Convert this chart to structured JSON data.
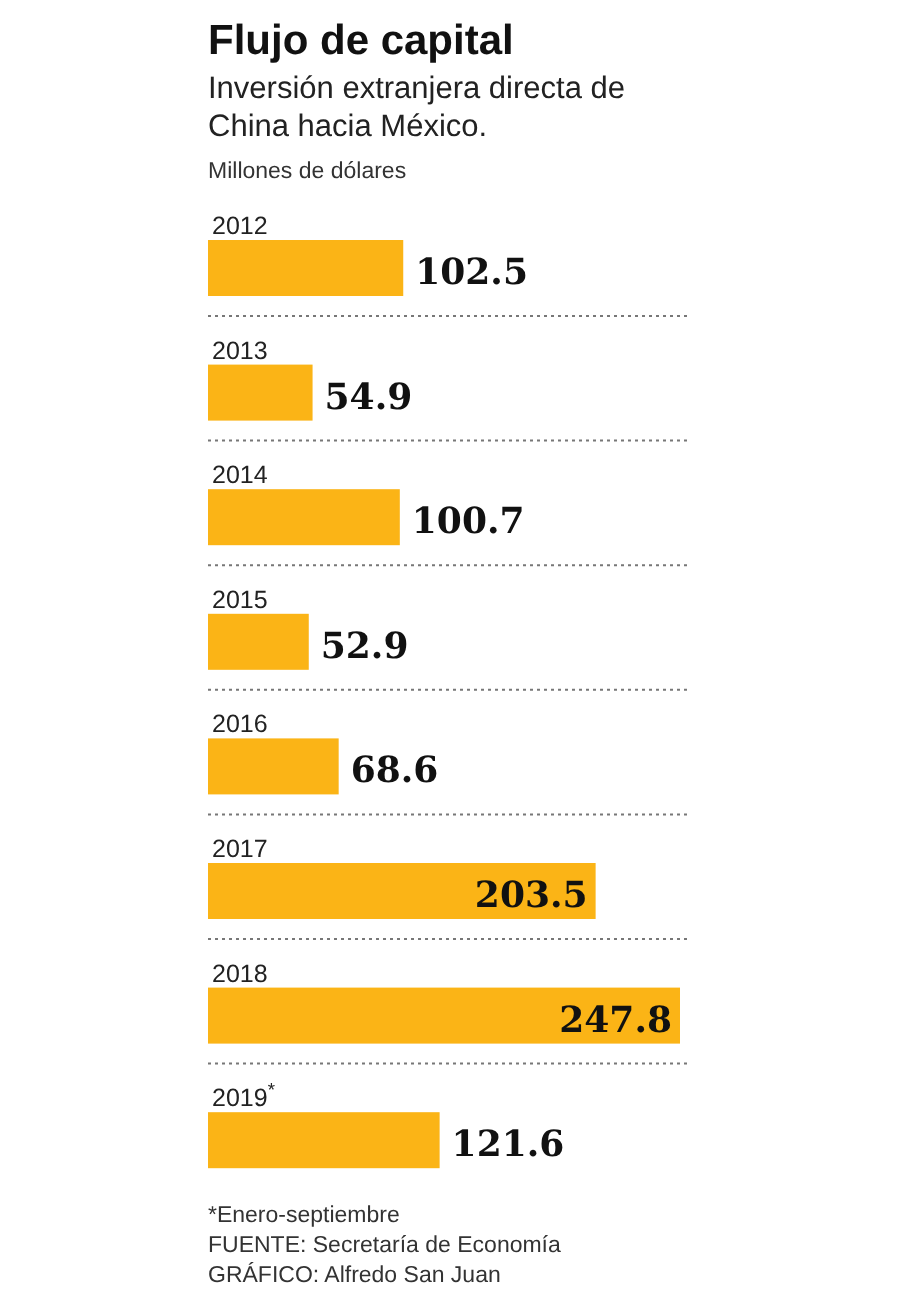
{
  "chart_data": {
    "type": "bar",
    "orientation": "horizontal",
    "title": "Flujo de capital",
    "subtitle": "Inversión extranjera directa de China hacia México.",
    "xlabel": "Millones de dólares",
    "categories": [
      "2012",
      "2013",
      "2014",
      "2015",
      "2016",
      "2017",
      "2018",
      "2019$^{*}$"
    ],
    "values": [
      102.5,
      54.9,
      100.7,
      52.9,
      68.6,
      203.5,
      247.8,
      121.6
    ],
    "color": "#fbb416",
    "data_labels": true,
    "annotations": [
      "*Enero-septiembre",
      "FUENTE: Secretaría de Economía",
      "GRÁFICO: Alfredo San Juan"
    ]
  }
}
